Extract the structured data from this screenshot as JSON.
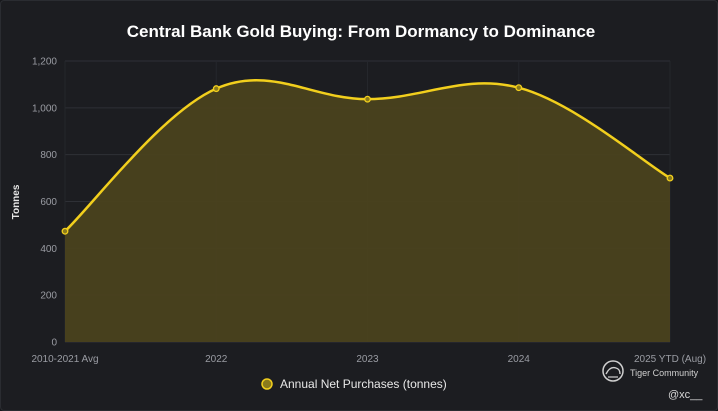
{
  "chart_data": {
    "type": "area",
    "title": "Central Bank Gold Buying: From Dormancy to Dominance",
    "ylabel": "Tonnes",
    "xlabel": "",
    "categories": [
      "2010-2021 Avg",
      "2022",
      "2023",
      "2024",
      "2025 YTD (Aug)"
    ],
    "series": [
      {
        "name": "Annual Net Purchases (tonnes)",
        "values": [
          473,
          1082,
          1037,
          1086,
          700
        ]
      }
    ],
    "ylim": [
      0,
      1200
    ],
    "yticks": [
      "0",
      "200",
      "400",
      "600",
      "800",
      "1,000",
      "1,200"
    ],
    "grid": true,
    "legend_position": "bottom",
    "colors": {
      "line": "#f2cf1d",
      "fill": "#4a421d",
      "background": "#1c1d21"
    }
  },
  "watermark": {
    "brand": "Tiger Community",
    "handle": "@xc__",
    "icon": "tiger-logo-icon"
  }
}
